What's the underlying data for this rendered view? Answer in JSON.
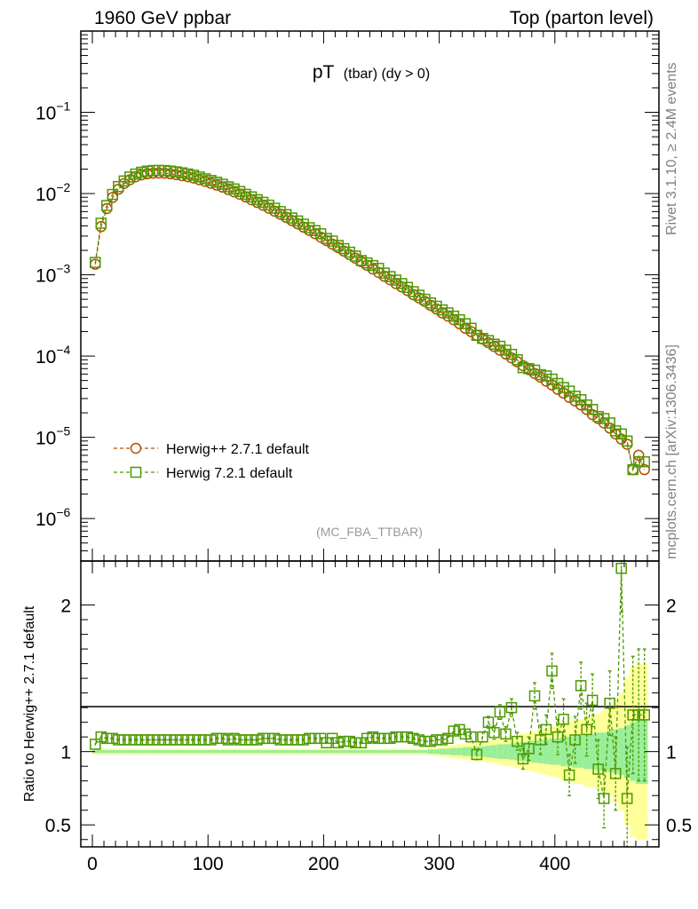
{
  "header": {
    "left": "1960 GeV ppbar",
    "right": "Top (parton level)"
  },
  "side_labels": {
    "rivet": "Rivet 3.1.10, ≥ 2.4M events",
    "mcplots": "mcplots.cern.ch [arXiv:1306.3436]"
  },
  "chart_data": [
    {
      "type": "line",
      "title_main": "pT",
      "title_sub": "(tbar) (dy > 0)",
      "watermark": "(MC_FBA_TTBAR)",
      "yscale": "log",
      "xlim": [
        -10,
        490
      ],
      "ylim": [
        3e-07,
        1
      ],
      "ytick_labels": [
        {
          "value": 1e-06,
          "base": "10",
          "exp": "−6"
        },
        {
          "value": 1e-05,
          "base": "10",
          "exp": "−5"
        },
        {
          "value": 0.0001,
          "base": "10",
          "exp": "−4"
        },
        {
          "value": 0.001,
          "base": "10",
          "exp": "−3"
        },
        {
          "value": 0.01,
          "base": "10",
          "exp": "−2"
        },
        {
          "value": 0.1,
          "base": "10",
          "exp": "−1"
        }
      ],
      "legend_position": "bottom-left",
      "series": [
        {
          "name": "Herwig++ 2.7.1 default",
          "color": "#b34d00",
          "marker": "circle",
          "x": [
            2.5,
            7.5,
            12.5,
            17.5,
            22.5,
            27.5,
            32.5,
            37.5,
            42.5,
            47.5,
            52.5,
            57.5,
            62.5,
            67.5,
            72.5,
            77.5,
            82.5,
            87.5,
            92.5,
            97.5,
            102.5,
            107.5,
            112.5,
            117.5,
            122.5,
            127.5,
            132.5,
            137.5,
            142.5,
            147.5,
            152.5,
            157.5,
            162.5,
            167.5,
            172.5,
            177.5,
            182.5,
            187.5,
            192.5,
            197.5,
            202.5,
            207.5,
            212.5,
            217.5,
            222.5,
            227.5,
            232.5,
            237.5,
            242.5,
            247.5,
            252.5,
            257.5,
            262.5,
            267.5,
            272.5,
            277.5,
            282.5,
            287.5,
            292.5,
            297.5,
            302.5,
            307.5,
            312.5,
            317.5,
            322.5,
            327.5,
            332.5,
            337.5,
            342.5,
            347.5,
            352.5,
            357.5,
            362.5,
            367.5,
            372.5,
            377.5,
            382.5,
            387.5,
            392.5,
            397.5,
            402.5,
            407.5,
            412.5,
            417.5,
            422.5,
            427.5,
            432.5,
            437.5,
            442.5,
            447.5,
            452.5,
            457.5,
            462.5,
            467.5,
            472.5,
            477.5
          ],
          "y": [
            0.00135,
            0.00392,
            0.00654,
            0.00895,
            0.0113,
            0.0133,
            0.0148,
            0.0161,
            0.017,
            0.0175,
            0.0178,
            0.0179,
            0.0178,
            0.0175,
            0.0171,
            0.0166,
            0.0161,
            0.0155,
            0.0148,
            0.0141,
            0.0134,
            0.0127,
            0.012,
            0.0112,
            0.0105,
            0.0098,
            0.0091,
            0.0084,
            0.00778,
            0.00718,
            0.00661,
            0.00607,
            0.00557,
            0.0051,
            0.00466,
            0.00425,
            0.00387,
            0.00353,
            0.00321,
            0.00291,
            0.00264,
            0.00239,
            0.00217,
            0.00196,
            0.00177,
            0.0016,
            0.00145,
            0.00131,
            0.00118,
            0.00107,
            0.00096,
            0.00087,
            0.00078,
            0.00071,
            0.00064,
            0.00057,
            0.00052,
            0.00047,
            0.00042,
            0.00038,
            0.00034,
            0.00031,
            0.00028,
            0.00025,
            0.00022,
            0.0002,
            0.00018,
            0.000162,
            0.000146,
            0.000131,
            0.000118,
            0.000106,
            9.5e-05,
            8.5e-05,
            7.6e-05,
            6.8e-05,
            6.1e-05,
            5.5e-05,
            4.9e-05,
            4.4e-05,
            3.9e-05,
            3.5e-05,
            3.1e-05,
            2.8e-05,
            2.5e-05,
            2.2e-05,
            1.9e-05,
            1.7e-05,
            1.5e-05,
            1.3e-05,
            1.1e-05,
            9.5e-06,
            8.2e-06,
            4e-06,
            6e-06,
            4e-06
          ]
        },
        {
          "name": "Herwig 7.2.1 default",
          "color": "#4c9900",
          "marker": "square",
          "x": [
            2.5,
            7.5,
            12.5,
            17.5,
            22.5,
            27.5,
            32.5,
            37.5,
            42.5,
            47.5,
            52.5,
            57.5,
            62.5,
            67.5,
            72.5,
            77.5,
            82.5,
            87.5,
            92.5,
            97.5,
            102.5,
            107.5,
            112.5,
            117.5,
            122.5,
            127.5,
            132.5,
            137.5,
            142.5,
            147.5,
            152.5,
            157.5,
            162.5,
            167.5,
            172.5,
            177.5,
            182.5,
            187.5,
            192.5,
            197.5,
            202.5,
            207.5,
            212.5,
            217.5,
            222.5,
            227.5,
            232.5,
            237.5,
            242.5,
            247.5,
            252.5,
            257.5,
            262.5,
            267.5,
            272.5,
            277.5,
            282.5,
            287.5,
            292.5,
            297.5,
            302.5,
            307.5,
            312.5,
            317.5,
            322.5,
            327.5,
            332.5,
            337.5,
            342.5,
            347.5,
            352.5,
            357.5,
            362.5,
            367.5,
            372.5,
            377.5,
            382.5,
            387.5,
            392.5,
            397.5,
            402.5,
            407.5,
            412.5,
            417.5,
            422.5,
            427.5,
            432.5,
            437.5,
            442.5,
            447.5,
            452.5,
            457.5,
            462.5,
            467.5,
            472.5,
            477.5
          ],
          "y": [
            0.00142,
            0.00431,
            0.00713,
            0.00976,
            0.0122,
            0.0143,
            0.016,
            0.0174,
            0.0183,
            0.0189,
            0.0192,
            0.0193,
            0.0192,
            0.0189,
            0.0185,
            0.018,
            0.0174,
            0.0168,
            0.016,
            0.0152,
            0.0145,
            0.0138,
            0.013,
            0.0121,
            0.0114,
            0.0106,
            0.0098,
            0.0091,
            0.0084,
            0.0078,
            0.0072,
            0.0066,
            0.006,
            0.0055,
            0.005,
            0.0046,
            0.0042,
            0.0038,
            0.0035,
            0.0032,
            0.0028,
            0.0026,
            0.0023,
            0.0021,
            0.0019,
            0.0017,
            0.0015,
            0.0014,
            0.0013,
            0.0012,
            0.00105,
            0.00095,
            0.00086,
            0.00078,
            0.0007,
            0.00062,
            0.00056,
            0.0005,
            0.00045,
            0.00041,
            0.00037,
            0.00034,
            0.00031,
            0.00028,
            0.00025,
            0.00022,
            0.00018,
            0.000165,
            0.000155,
            0.00014,
            0.000132,
            0.000118,
            0.000105,
            9e-05,
            7.2e-05,
            7e-05,
            6.7e-05,
            5.9e-05,
            5.7e-05,
            5.2e-05,
            4.6e-05,
            4.1e-05,
            3.7e-05,
            3.2e-05,
            2.9e-05,
            2.5e-05,
            2.2e-05,
            1.8e-05,
            1.7e-05,
            1.5e-05,
            1.2e-05,
            1.1e-05,
            9e-06,
            4e-06,
            5e-06,
            5e-06
          ]
        }
      ]
    },
    {
      "type": "line",
      "ylabel": "Ratio to Herwig++ 2.7.1 default",
      "xlim": [
        -10,
        490
      ],
      "ylim": [
        0.35,
        2.3
      ],
      "xtick_labels": [
        "0",
        "100",
        "200",
        "300",
        "400"
      ],
      "xticks": [
        0,
        100,
        200,
        300,
        400
      ],
      "ytick_labels": [
        "0.5",
        "1",
        "2"
      ],
      "yticks": [
        0.5,
        1,
        2
      ],
      "reference_line": 1,
      "band_green_halfwidth": [
        0.01,
        0.01,
        0.01,
        0.01,
        0.01,
        0.01,
        0.01,
        0.01,
        0.01,
        0.01,
        0.01,
        0.01,
        0.01,
        0.01,
        0.01,
        0.01,
        0.01,
        0.01,
        0.01,
        0.01,
        0.01,
        0.01,
        0.01,
        0.01,
        0.01,
        0.01,
        0.01,
        0.01,
        0.01,
        0.01,
        0.01,
        0.01,
        0.01,
        0.01,
        0.01,
        0.01,
        0.01,
        0.01,
        0.01,
        0.01,
        0.01,
        0.01,
        0.01,
        0.01,
        0.01,
        0.01,
        0.01,
        0.01,
        0.01,
        0.01,
        0.01,
        0.01,
        0.01,
        0.01,
        0.01,
        0.01,
        0.01,
        0.01,
        0.015,
        0.015,
        0.02,
        0.02,
        0.025,
        0.025,
        0.03,
        0.03,
        0.035,
        0.035,
        0.04,
        0.045,
        0.05,
        0.05,
        0.055,
        0.06,
        0.065,
        0.07,
        0.075,
        0.08,
        0.085,
        0.09,
        0.09,
        0.1,
        0.1,
        0.11,
        0.11,
        0.12,
        0.12,
        0.13,
        0.13,
        0.14,
        0.15,
        0.16,
        0.18,
        0.2,
        0.22,
        0.22
      ],
      "band_yellow_halfwidth": [
        0.02,
        0.02,
        0.02,
        0.02,
        0.02,
        0.02,
        0.02,
        0.02,
        0.02,
        0.02,
        0.02,
        0.02,
        0.02,
        0.02,
        0.02,
        0.02,
        0.02,
        0.02,
        0.02,
        0.02,
        0.02,
        0.02,
        0.02,
        0.02,
        0.02,
        0.02,
        0.02,
        0.02,
        0.02,
        0.02,
        0.02,
        0.02,
        0.02,
        0.02,
        0.02,
        0.02,
        0.02,
        0.02,
        0.02,
        0.02,
        0.02,
        0.02,
        0.02,
        0.02,
        0.02,
        0.02,
        0.02,
        0.02,
        0.02,
        0.02,
        0.02,
        0.02,
        0.02,
        0.02,
        0.02,
        0.02,
        0.02,
        0.02,
        0.025,
        0.03,
        0.035,
        0.04,
        0.045,
        0.05,
        0.055,
        0.06,
        0.065,
        0.07,
        0.075,
        0.08,
        0.09,
        0.1,
        0.1,
        0.11,
        0.12,
        0.13,
        0.14,
        0.15,
        0.16,
        0.17,
        0.18,
        0.2,
        0.2,
        0.22,
        0.22,
        0.24,
        0.24,
        0.26,
        0.28,
        0.3,
        0.35,
        0.4,
        0.5,
        0.58,
        0.6,
        0.6
      ],
      "series": [
        {
          "name": "Herwig 7.2.1 default",
          "color": "#4c9900",
          "marker": "square",
          "x": [
            2.5,
            7.5,
            12.5,
            17.5,
            22.5,
            27.5,
            32.5,
            37.5,
            42.5,
            47.5,
            52.5,
            57.5,
            62.5,
            67.5,
            72.5,
            77.5,
            82.5,
            87.5,
            92.5,
            97.5,
            102.5,
            107.5,
            112.5,
            117.5,
            122.5,
            127.5,
            132.5,
            137.5,
            142.5,
            147.5,
            152.5,
            157.5,
            162.5,
            167.5,
            172.5,
            177.5,
            182.5,
            187.5,
            192.5,
            197.5,
            202.5,
            207.5,
            212.5,
            217.5,
            222.5,
            227.5,
            232.5,
            237.5,
            242.5,
            247.5,
            252.5,
            257.5,
            262.5,
            267.5,
            272.5,
            277.5,
            282.5,
            287.5,
            292.5,
            297.5,
            302.5,
            307.5,
            312.5,
            317.5,
            322.5,
            327.5,
            332.5,
            337.5,
            342.5,
            347.5,
            352.5,
            357.5,
            362.5,
            367.5,
            372.5,
            377.5,
            382.5,
            387.5,
            392.5,
            397.5,
            402.5,
            407.5,
            412.5,
            417.5,
            422.5,
            427.5,
            432.5,
            437.5,
            442.5,
            447.5,
            452.5,
            457.5,
            462.5,
            467.5,
            472.5,
            477.5
          ],
          "y": [
            1.05,
            1.1,
            1.09,
            1.09,
            1.08,
            1.08,
            1.08,
            1.08,
            1.08,
            1.08,
            1.08,
            1.08,
            1.08,
            1.08,
            1.08,
            1.08,
            1.08,
            1.08,
            1.08,
            1.08,
            1.08,
            1.09,
            1.09,
            1.08,
            1.09,
            1.08,
            1.08,
            1.08,
            1.08,
            1.09,
            1.09,
            1.09,
            1.08,
            1.08,
            1.08,
            1.08,
            1.08,
            1.09,
            1.09,
            1.09,
            1.06,
            1.09,
            1.06,
            1.07,
            1.07,
            1.06,
            1.06,
            1.09,
            1.1,
            1.09,
            1.09,
            1.09,
            1.1,
            1.1,
            1.1,
            1.09,
            1.08,
            1.07,
            1.07,
            1.08,
            1.08,
            1.09,
            1.14,
            1.15,
            1.12,
            1.1,
            0.98,
            1.1,
            1.2,
            1.13,
            1.27,
            1.12,
            1.3,
            1.07,
            0.95,
            1.02,
            1.38,
            1.08,
            1.15,
            1.55,
            1.1,
            1.22,
            0.84,
            1.08,
            1.45,
            1.15,
            1.35,
            0.88,
            0.68,
            1.33,
            0.85,
            2.25,
            0.68,
            1.25,
            1.25,
            1.25
          ],
          "yerr": [
            0.01,
            0.01,
            0.01,
            0.01,
            0.01,
            0.01,
            0.01,
            0.01,
            0.01,
            0.01,
            0.01,
            0.01,
            0.01,
            0.01,
            0.01,
            0.01,
            0.01,
            0.01,
            0.01,
            0.01,
            0.01,
            0.01,
            0.01,
            0.01,
            0.01,
            0.01,
            0.01,
            0.01,
            0.01,
            0.01,
            0.01,
            0.01,
            0.01,
            0.01,
            0.01,
            0.01,
            0.01,
            0.01,
            0.01,
            0.01,
            0.01,
            0.01,
            0.01,
            0.01,
            0.01,
            0.01,
            0.01,
            0.01,
            0.01,
            0.01,
            0.01,
            0.01,
            0.01,
            0.01,
            0.01,
            0.01,
            0.01,
            0.01,
            0.015,
            0.015,
            0.02,
            0.02,
            0.025,
            0.025,
            0.03,
            0.03,
            0.035,
            0.035,
            0.04,
            0.045,
            0.05,
            0.05,
            0.06,
            0.06,
            0.07,
            0.08,
            0.09,
            0.1,
            0.1,
            0.12,
            0.12,
            0.14,
            0.14,
            0.16,
            0.16,
            0.18,
            0.18,
            0.2,
            0.2,
            0.22,
            0.25,
            0.3,
            0.35,
            0.4,
            0.45,
            0.45
          ]
        }
      ]
    }
  ]
}
